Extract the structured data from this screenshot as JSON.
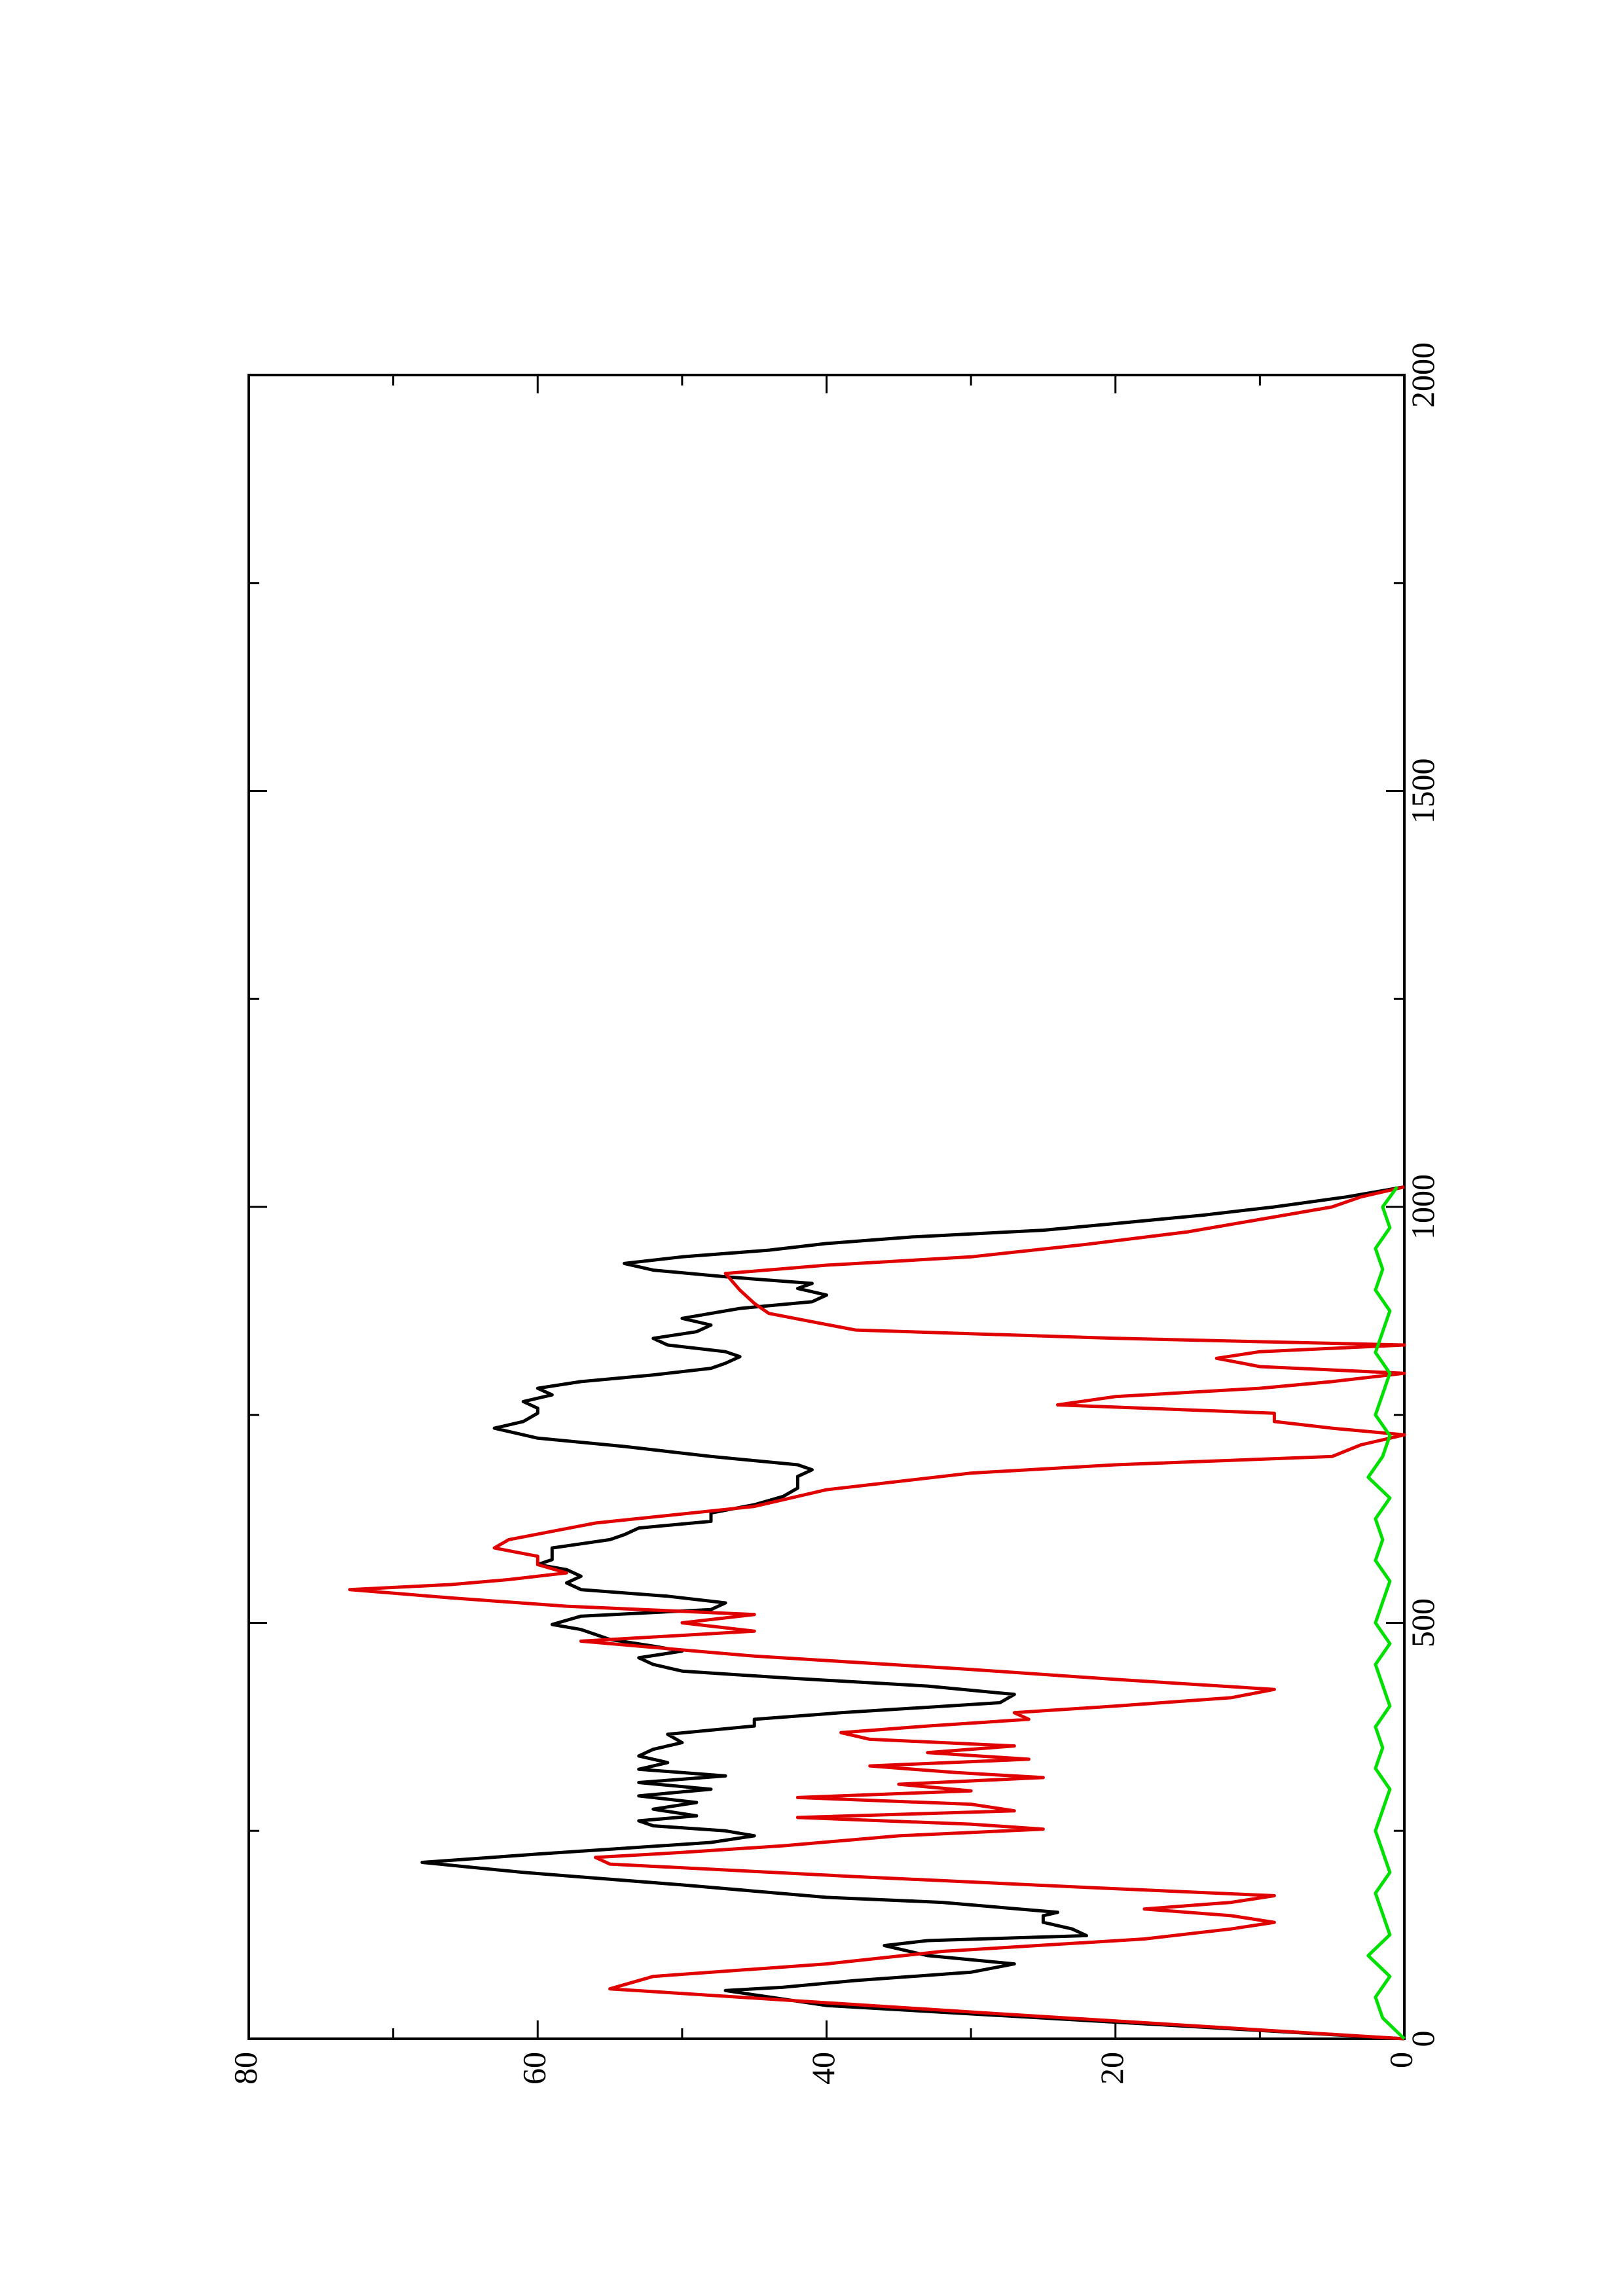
{
  "chart_data": {
    "type": "line",
    "title": "",
    "xlabel": "",
    "ylabel": "",
    "xlim": [
      0,
      2000
    ],
    "ylim": [
      0,
      80
    ],
    "x_ticks": [
      0,
      500,
      1000,
      1500,
      2000
    ],
    "y_ticks": [
      0,
      20,
      40,
      60,
      80
    ],
    "x_tick_labels": [
      "0",
      "500",
      "1000",
      "1500",
      "2000"
    ],
    "y_tick_labels": [
      "0",
      "20",
      "40",
      "60",
      "80"
    ],
    "orientation": "rotated 90° counter-clockwise",
    "grid": false,
    "legend": "none",
    "colors": {
      "black_series": "#000000",
      "red_series": "#e00000",
      "green_series": "#00e000"
    },
    "series": [
      {
        "color": "#000000",
        "x": [
          0,
          20,
          40,
          58,
          62,
          70,
          80,
          90,
          100,
          112,
          118,
          124,
          132,
          140,
          148,
          152,
          158,
          164,
          170,
          185,
          200,
          212,
          222,
          236,
          244,
          250,
          256,
          262,
          268,
          276,
          284,
          292,
          300,
          308,
          316,
          324,
          332,
          340,
          348,
          356,
          366,
          376,
          384,
          392,
          404,
          414,
          424,
          434,
          442,
          450,
          458,
          466,
          472,
          480,
          486,
          492,
          498,
          508,
          516,
          524,
          532,
          540,
          548,
          556,
          564,
          570,
          576,
          582,
          590,
          600,
          606,
          614,
          622,
          632,
          642,
          652,
          662,
          668,
          676,
          684,
          690,
          700,
          712,
          722,
          734,
          742,
          752,
          758,
          766,
          774,
          782,
          790,
          798,
          806,
          812,
          820,
          826,
          834,
          842,
          850,
          858,
          866,
          872,
          878,
          886,
          894,
          902,
          908,
          916,
          924,
          932,
          940,
          948,
          956,
          964,
          972,
          980,
          990,
          1000,
          1012,
          1024
        ],
        "y": [
          0,
          20,
          40,
          47,
          43,
          38,
          30,
          27,
          33,
          36,
          33,
          22,
          23,
          25,
          25,
          24,
          28,
          32,
          40,
          50,
          61,
          68,
          60,
          48,
          45,
          47,
          52,
          53,
          49,
          52,
          49,
          53,
          48,
          53,
          47,
          53,
          51,
          53,
          52,
          50,
          51,
          45,
          45,
          39,
          28,
          27,
          33,
          43,
          50,
          52,
          53,
          50,
          52,
          55,
          56,
          57,
          59,
          57,
          48,
          47,
          51,
          57,
          58,
          57,
          58,
          60,
          59,
          59,
          59,
          55,
          54,
          53,
          48,
          48,
          45,
          43,
          42,
          42,
          42,
          41,
          42,
          48,
          54,
          60,
          63,
          61,
          60,
          60,
          61,
          59,
          60,
          57,
          52,
          48,
          47,
          46,
          47,
          51,
          52,
          49,
          48,
          50,
          48,
          46,
          41,
          40,
          42,
          41,
          47,
          52,
          54,
          50,
          44,
          40,
          34,
          25,
          20,
          14,
          9,
          4,
          0
        ]
      },
      {
        "color": "#e00000",
        "x": [
          0,
          30,
          60,
          75,
          90,
          105,
          120,
          132,
          140,
          148,
          156,
          164,
          172,
          182,
          195,
          210,
          218,
          224,
          232,
          244,
          252,
          258,
          266,
          274,
          282,
          290,
          298,
          306,
          314,
          320,
          328,
          336,
          344,
          352,
          360,
          368,
          376,
          384,
          392,
          400,
          410,
          420,
          432,
          444,
          460,
          478,
          490,
          500,
          510,
          520,
          530,
          540,
          546,
          552,
          560,
          570,
          580,
          590,
          600,
          620,
          640,
          660,
          680,
          690,
          700,
          714,
          726,
          734,
          742,
          752,
          762,
          772,
          782,
          790,
          800,
          808,
          818,
          826,
          834,
          842,
          852,
          862,
          872,
          884,
          900,
          920,
          930,
          940,
          955,
          970,
          985,
          1000,
          1012,
          1024
        ],
        "y": [
          0,
          28,
          55,
          52,
          40,
          32,
          18,
          12,
          9,
          12,
          18,
          12,
          9,
          22,
          38,
          55,
          56,
          50,
          43,
          35,
          25,
          30,
          42,
          27,
          30,
          42,
          30,
          35,
          25,
          31,
          37,
          26,
          33,
          27,
          37,
          39,
          33,
          26,
          27,
          20,
          12,
          9,
          20,
          30,
          45,
          57,
          45,
          50,
          45,
          58,
          66,
          73,
          66,
          62,
          58,
          60,
          60,
          63,
          62,
          56,
          45,
          40,
          30,
          20,
          5,
          3,
          0,
          5,
          9,
          9,
          24,
          20,
          10,
          5,
          0,
          10,
          13,
          10,
          0,
          20,
          38,
          41,
          44,
          45,
          46,
          47,
          40,
          30,
          22,
          15,
          10,
          5,
          3,
          0
        ]
      },
      {
        "color": "#00e000",
        "x": [
          0,
          25,
          50,
          75,
          100,
          125,
          150,
          175,
          200,
          225,
          250,
          275,
          300,
          325,
          350,
          375,
          400,
          425,
          450,
          475,
          500,
          525,
          550,
          575,
          600,
          625,
          650,
          675,
          700,
          725,
          750,
          775,
          800,
          825,
          850,
          875,
          900,
          925,
          950,
          975,
          1000,
          1024
        ],
        "y": [
          0,
          1.5,
          2,
          1,
          2.5,
          1,
          1.5,
          2,
          1,
          1.5,
          2,
          1.5,
          1,
          2,
          1.5,
          2,
          1,
          1.5,
          2,
          1,
          2,
          1.5,
          1,
          2,
          1.5,
          2,
          1,
          2.5,
          1.5,
          1,
          2,
          1.5,
          1,
          2,
          1.5,
          1,
          2,
          1.5,
          2,
          1,
          1.5,
          0.5
        ]
      }
    ]
  }
}
